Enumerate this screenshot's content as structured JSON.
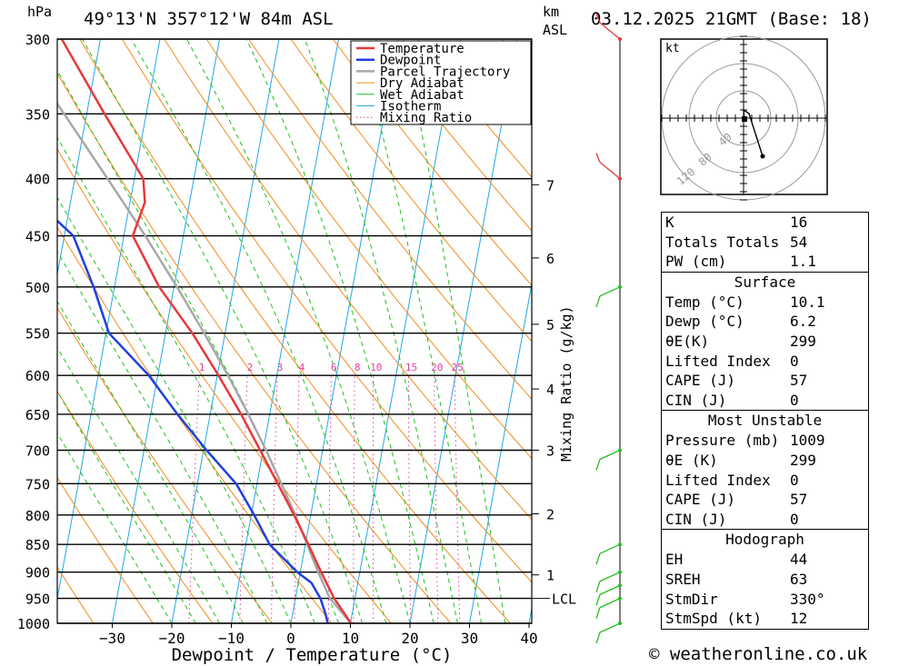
{
  "header": {
    "location": "49°13'N 357°12'W 84m ASL",
    "datetime": "03.12.2025 21GMT (Base: 18)",
    "hpa_unit": "hPa",
    "km_unit": "km",
    "asl_unit": "ASL"
  },
  "credit": "© weatheronline.co.uk",
  "legend": [
    "Temperature",
    "Dewpoint",
    "Parcel Trajectory",
    "Dry Adiabat",
    "Wet Adiabat",
    "Isotherm",
    "Mixing Ratio"
  ],
  "colors": {
    "temperature": "#e8383a",
    "dewpoint": "#2040e0",
    "parcel": "#a8a8a8",
    "dry_adiabat": "#f08c1e",
    "wet_adiabat": "#20c020",
    "isotherm": "#20a8e8",
    "mixing_ratio": "#e040a0",
    "wind_barb": "#20c020"
  },
  "chart_data": {
    "type": "skew-t",
    "xlabel": "Dewpoint / Temperature (°C)",
    "ylabel": "hPa",
    "pressure_levels": [
      300,
      350,
      400,
      450,
      500,
      550,
      600,
      650,
      700,
      750,
      800,
      850,
      900,
      950,
      1000
    ],
    "temperature_ticks": [
      -30,
      -20,
      -10,
      0,
      10,
      20,
      30,
      40
    ],
    "xlim": [
      -40,
      40
    ],
    "ylim": [
      1000,
      300
    ],
    "height_km_labels": [
      {
        "label": "1",
        "p": 905
      },
      {
        "label": "2",
        "p": 798
      },
      {
        "label": "3",
        "p": 700
      },
      {
        "label": "4",
        "p": 617
      },
      {
        "label": "5",
        "p": 540
      },
      {
        "label": "6",
        "p": 471
      },
      {
        "label": "7",
        "p": 405
      }
    ],
    "lcl": {
      "label": "LCL",
      "p": 950
    },
    "mixing_ratio_label": "Mixing Ratio (g/kg)",
    "mixing_ratio_values": [
      "1",
      "2",
      "3",
      "4",
      "6",
      "8",
      "10",
      "15",
      "20",
      "25"
    ],
    "temperature_profile": [
      {
        "p": 1000,
        "t": 10.1
      },
      {
        "p": 950,
        "t": 6.5
      },
      {
        "p": 900,
        "t": 3.5
      },
      {
        "p": 850,
        "t": 0.5
      },
      {
        "p": 800,
        "t": -2.8
      },
      {
        "p": 750,
        "t": -6.5
      },
      {
        "p": 700,
        "t": -10.5
      },
      {
        "p": 650,
        "t": -14.8
      },
      {
        "p": 600,
        "t": -19.8
      },
      {
        "p": 550,
        "t": -25.5
      },
      {
        "p": 500,
        "t": -32.5
      },
      {
        "p": 450,
        "t": -38.5
      },
      {
        "p": 420,
        "t": -37.5
      },
      {
        "p": 400,
        "t": -38.5
      },
      {
        "p": 350,
        "t": -47
      },
      {
        "p": 300,
        "t": -56.5
      }
    ],
    "dewpoint_profile": [
      {
        "p": 1000,
        "t": 6.2
      },
      {
        "p": 980,
        "t": 5.5
      },
      {
        "p": 950,
        "t": 4.2
      },
      {
        "p": 920,
        "t": 2.2
      },
      {
        "p": 900,
        "t": -0.5
      },
      {
        "p": 850,
        "t": -6
      },
      {
        "p": 800,
        "t": -9.5
      },
      {
        "p": 750,
        "t": -13.5
      },
      {
        "p": 700,
        "t": -19.5
      },
      {
        "p": 650,
        "t": -25.5
      },
      {
        "p": 600,
        "t": -31.5
      },
      {
        "p": 550,
        "t": -39.5
      },
      {
        "p": 500,
        "t": -43.5
      },
      {
        "p": 450,
        "t": -48.5
      },
      {
        "p": 400,
        "t": -60.5
      },
      {
        "p": 350,
        "t": -60.5
      },
      {
        "p": 300,
        "t": -65.5
      }
    ],
    "parcel_profile": [
      {
        "p": 1000,
        "t": 10.1
      },
      {
        "p": 950,
        "t": 5.8
      },
      {
        "p": 900,
        "t": 3.0
      },
      {
        "p": 850,
        "t": 0.3
      },
      {
        "p": 800,
        "t": -2.6
      },
      {
        "p": 750,
        "t": -5.9
      },
      {
        "p": 700,
        "t": -9.5
      },
      {
        "p": 650,
        "t": -13.6
      },
      {
        "p": 600,
        "t": -18.2
      },
      {
        "p": 550,
        "t": -23.5
      },
      {
        "p": 500,
        "t": -29.5
      },
      {
        "p": 450,
        "t": -36.4
      },
      {
        "p": 400,
        "t": -44.5
      },
      {
        "p": 350,
        "t": -53.8
      },
      {
        "p": 300,
        "t": -64.5
      }
    ],
    "wind_barbs_p": [
      1000,
      950,
      925,
      900,
      850,
      700,
      500,
      400,
      300
    ]
  },
  "hodograph": {
    "unit": "kt",
    "ring_labels": [
      "40",
      "80",
      "120"
    ]
  },
  "indices": {
    "general": [
      {
        "label": "K",
        "value": "16"
      },
      {
        "label": "Totals Totals",
        "value": "54"
      },
      {
        "label": "PW (cm)",
        "value": "1.1"
      }
    ],
    "surface_title": "Surface",
    "surface": [
      {
        "label": "Temp (°C)",
        "value": "10.1"
      },
      {
        "label": "Dewp (°C)",
        "value": "6.2"
      },
      {
        "label": "θE(K)",
        "value": "299"
      },
      {
        "label": "Lifted Index",
        "value": "0"
      },
      {
        "label": "CAPE (J)",
        "value": "57"
      },
      {
        "label": "CIN (J)",
        "value": "0"
      }
    ],
    "most_unstable_title": "Most Unstable",
    "most_unstable": [
      {
        "label": "Pressure (mb)",
        "value": "1009"
      },
      {
        "label": "θE (K)",
        "value": "299"
      },
      {
        "label": "Lifted Index",
        "value": "0"
      },
      {
        "label": "CAPE (J)",
        "value": "57"
      },
      {
        "label": "CIN (J)",
        "value": "0"
      }
    ],
    "hodograph_title": "Hodograph",
    "hodograph": [
      {
        "label": "EH",
        "value": "44"
      },
      {
        "label": "SREH",
        "value": "63"
      },
      {
        "label": "StmDir",
        "value": "330°"
      },
      {
        "label": "StmSpd (kt)",
        "value": "12"
      }
    ]
  }
}
